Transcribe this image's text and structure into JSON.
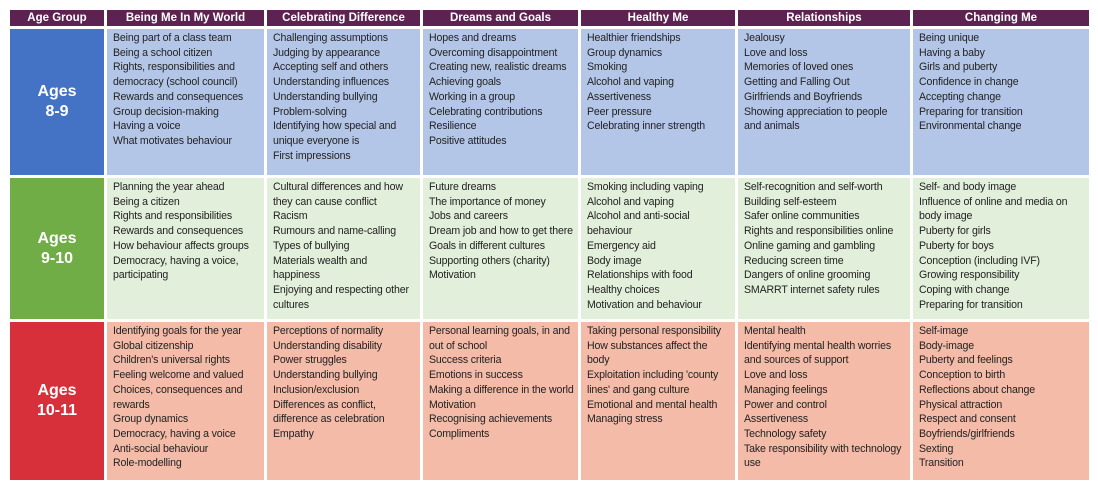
{
  "headers": [
    "Age Group",
    "Being Me In My World",
    "Celebrating Difference",
    "Dreams and Goals",
    "Healthy Me",
    "Relationships",
    "Changing Me"
  ],
  "colors": {
    "header": "#5c2352"
  },
  "rows": [
    {
      "age_line1": "Ages",
      "age_line2": "8-9",
      "age_color": "#4472c4",
      "cell_color": "#b4c6e7",
      "cells": [
        [
          "Being part of a class team",
          "Being a school citizen",
          "Rights, responsibilities and democracy (school council)",
          "Rewards and consequences",
          "Group decision-making",
          "Having a voice",
          "What motivates behaviour"
        ],
        [
          "Challenging assumptions",
          "Judging by appearance",
          "Accepting self and others",
          "Understanding influences",
          "Understanding bullying",
          "Problem-solving",
          "Identifying how special and unique everyone is",
          "First impressions"
        ],
        [
          "Hopes and dreams",
          "Overcoming disappointment",
          "Creating new, realistic dreams",
          "Achieving goals",
          "Working in a group",
          "Celebrating contributions",
          "Resilience",
          "Positive attitudes"
        ],
        [
          "Healthier friendships",
          "Group dynamics",
          "Smoking",
          "Alcohol and vaping",
          "Assertiveness",
          "Peer pressure",
          "Celebrating inner strength"
        ],
        [
          "Jealousy",
          "Love and loss",
          "Memories of loved ones",
          "Getting and Falling Out",
          "Girlfriends and Boyfriends",
          "Showing appreciation to people and animals"
        ],
        [
          "Being unique",
          "Having a baby",
          "Girls and puberty",
          "Confidence in change",
          "Accepting change",
          "Preparing for transition",
          "Environmental change"
        ]
      ]
    },
    {
      "age_line1": "Ages",
      "age_line2": "9-10",
      "age_color": "#70ad47",
      "cell_color": "#e2efda",
      "cells": [
        [
          "Planning the year ahead",
          "Being a citizen",
          "Rights and responsibilities",
          "Rewards and consequences",
          "How behaviour affects groups",
          "Democracy, having a voice, participating"
        ],
        [
          "Cultural differences and how they can cause conflict",
          "Racism",
          "Rumours and name-calling",
          "Types of bullying",
          "Materials wealth and happiness",
          "Enjoying and respecting other cultures"
        ],
        [
          "Future dreams",
          "The importance of money",
          "Jobs and careers",
          "Dream job and how to get there",
          "Goals in different cultures",
          "Supporting others (charity)",
          "Motivation"
        ],
        [
          "Smoking including vaping",
          "Alcohol and vaping",
          "Alcohol and anti-social behaviour",
          "Emergency aid",
          "Body image",
          "Relationships with food",
          "Healthy choices",
          "Motivation and behaviour"
        ],
        [
          "Self-recognition and self-worth",
          "Building self-esteem",
          "Safer online communities",
          "Rights and responsibilities online",
          "Online gaming and gambling",
          "Reducing screen time",
          "Dangers of online grooming",
          "SMARRT internet safety rules"
        ],
        [
          "Self- and body image",
          "Influence of online and media on body image",
          "Puberty for girls",
          "Puberty for boys",
          "Conception (including IVF)",
          "Growing responsibility",
          "Coping with change",
          "Preparing for transition"
        ]
      ]
    },
    {
      "age_line1": "Ages",
      "age_line2": "10-11",
      "age_color": "#d7303a",
      "cell_color": "#f4bba8",
      "cells": [
        [
          "Identifying goals for the year",
          "Global citizenship",
          "Children's universal rights",
          "Feeling welcome and valued",
          "Choices, consequences and rewards",
          "Group dynamics",
          "Democracy, having a voice",
          "Anti-social behaviour",
          "Role-modelling"
        ],
        [
          "Perceptions of normality",
          "Understanding disability",
          "Power struggles",
          "Understanding bullying",
          "Inclusion/exclusion",
          "Differences as conflict, difference as celebration",
          "Empathy"
        ],
        [
          "Personal learning goals, in and out of school",
          "Success criteria",
          "Emotions in success",
          "Making a difference in the world",
          "Motivation",
          "Recognising achievements",
          "Compliments"
        ],
        [
          "Taking personal responsibility",
          "How substances affect the body",
          "Exploitation including 'county lines' and gang culture",
          "Emotional and mental health",
          "Managing stress"
        ],
        [
          "Mental health",
          "Identifying mental health worries and sources of support",
          "Love and loss",
          "Managing feelings",
          "Power and control",
          "Assertiveness",
          "Technology safety",
          "Take responsibility with technology use"
        ],
        [
          "Self-image",
          "Body-image",
          "Puberty and feelings",
          "Conception to birth",
          "Reflections about change",
          "Physical attraction",
          "Respect and consent",
          "Boyfriends/girlfriends",
          "Sexting",
          "Transition"
        ]
      ]
    }
  ]
}
